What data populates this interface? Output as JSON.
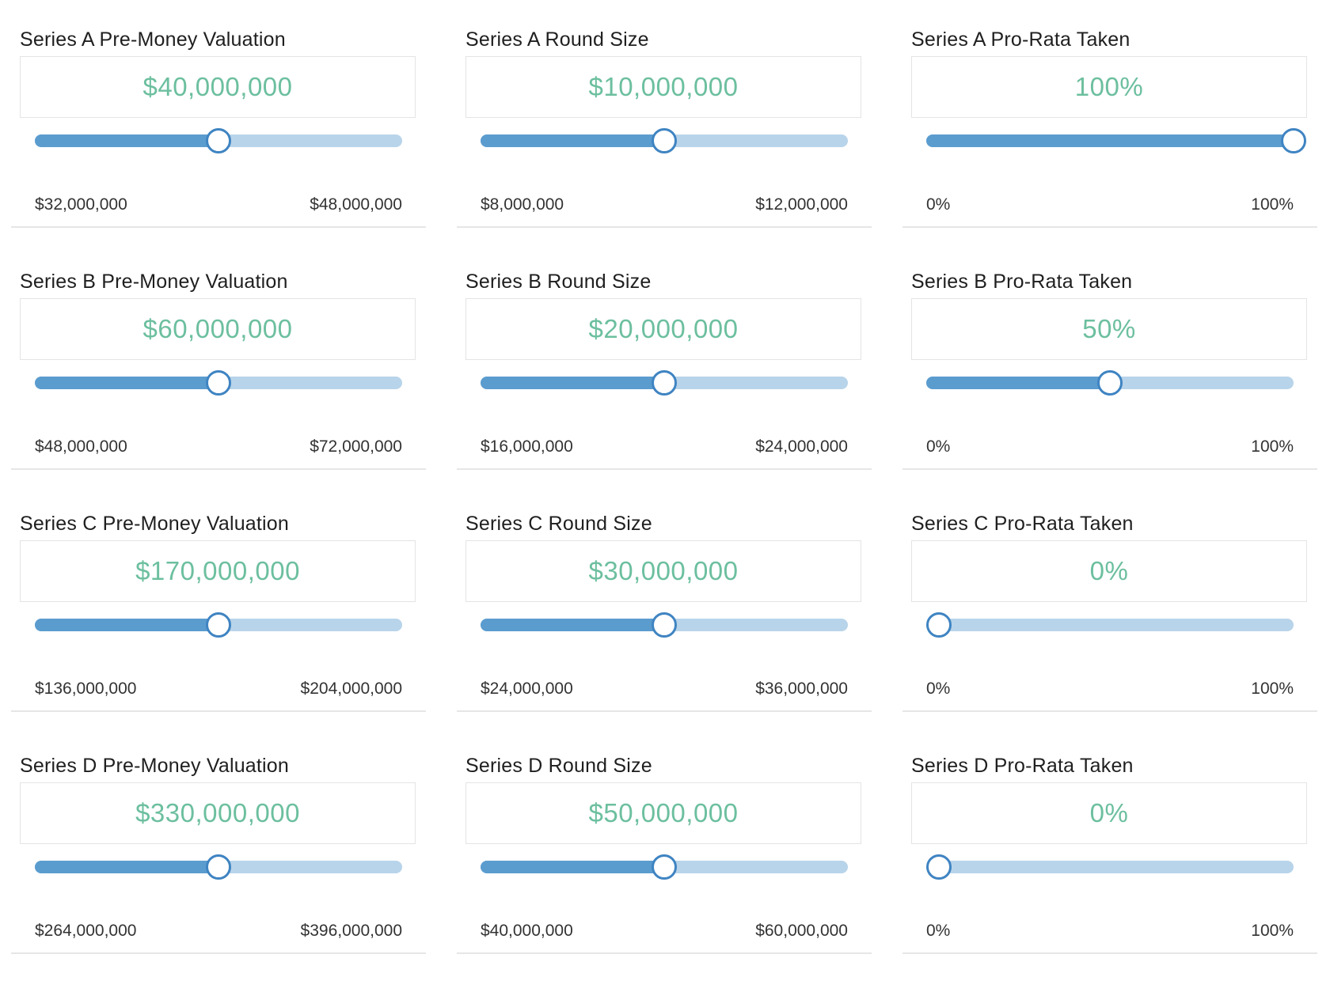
{
  "sliders": [
    {
      "label": "Series A Pre-Money Valuation",
      "value": "$40,000,000",
      "min": "$32,000,000",
      "max": "$48,000,000",
      "fraction": 0.5
    },
    {
      "label": "Series A Round Size",
      "value": "$10,000,000",
      "min": "$8,000,000",
      "max": "$12,000,000",
      "fraction": 0.5
    },
    {
      "label": "Series A Pro-Rata Taken",
      "value": "100%",
      "min": "0%",
      "max": "100%",
      "fraction": 1.0
    },
    {
      "label": "Series B Pre-Money Valuation",
      "value": "$60,000,000",
      "min": "$48,000,000",
      "max": "$72,000,000",
      "fraction": 0.5
    },
    {
      "label": "Series B Round Size",
      "value": "$20,000,000",
      "min": "$16,000,000",
      "max": "$24,000,000",
      "fraction": 0.5
    },
    {
      "label": "Series B Pro-Rata Taken",
      "value": "50%",
      "min": "0%",
      "max": "100%",
      "fraction": 0.5
    },
    {
      "label": "Series C Pre-Money Valuation",
      "value": "$170,000,000",
      "min": "$136,000,000",
      "max": "$204,000,000",
      "fraction": 0.5
    },
    {
      "label": "Series C Round Size",
      "value": "$30,000,000",
      "min": "$24,000,000",
      "max": "$36,000,000",
      "fraction": 0.5
    },
    {
      "label": "Series C Pro-Rata Taken",
      "value": "0%",
      "min": "0%",
      "max": "100%",
      "fraction": 0.0
    },
    {
      "label": "Series D Pre-Money Valuation",
      "value": "$330,000,000",
      "min": "$264,000,000",
      "max": "$396,000,000",
      "fraction": 0.5
    },
    {
      "label": "Series D Round Size",
      "value": "$50,000,000",
      "min": "$40,000,000",
      "max": "$60,000,000",
      "fraction": 0.5
    },
    {
      "label": "Series D Pro-Rata Taken",
      "value": "0%",
      "min": "0%",
      "max": "100%",
      "fraction": 0.0
    }
  ],
  "colors": {
    "value_text": "#6cbf9f",
    "track_fill": "#5b9ccf",
    "track_rest": "#b8d4ea",
    "thumb_border": "#3f84c2"
  }
}
